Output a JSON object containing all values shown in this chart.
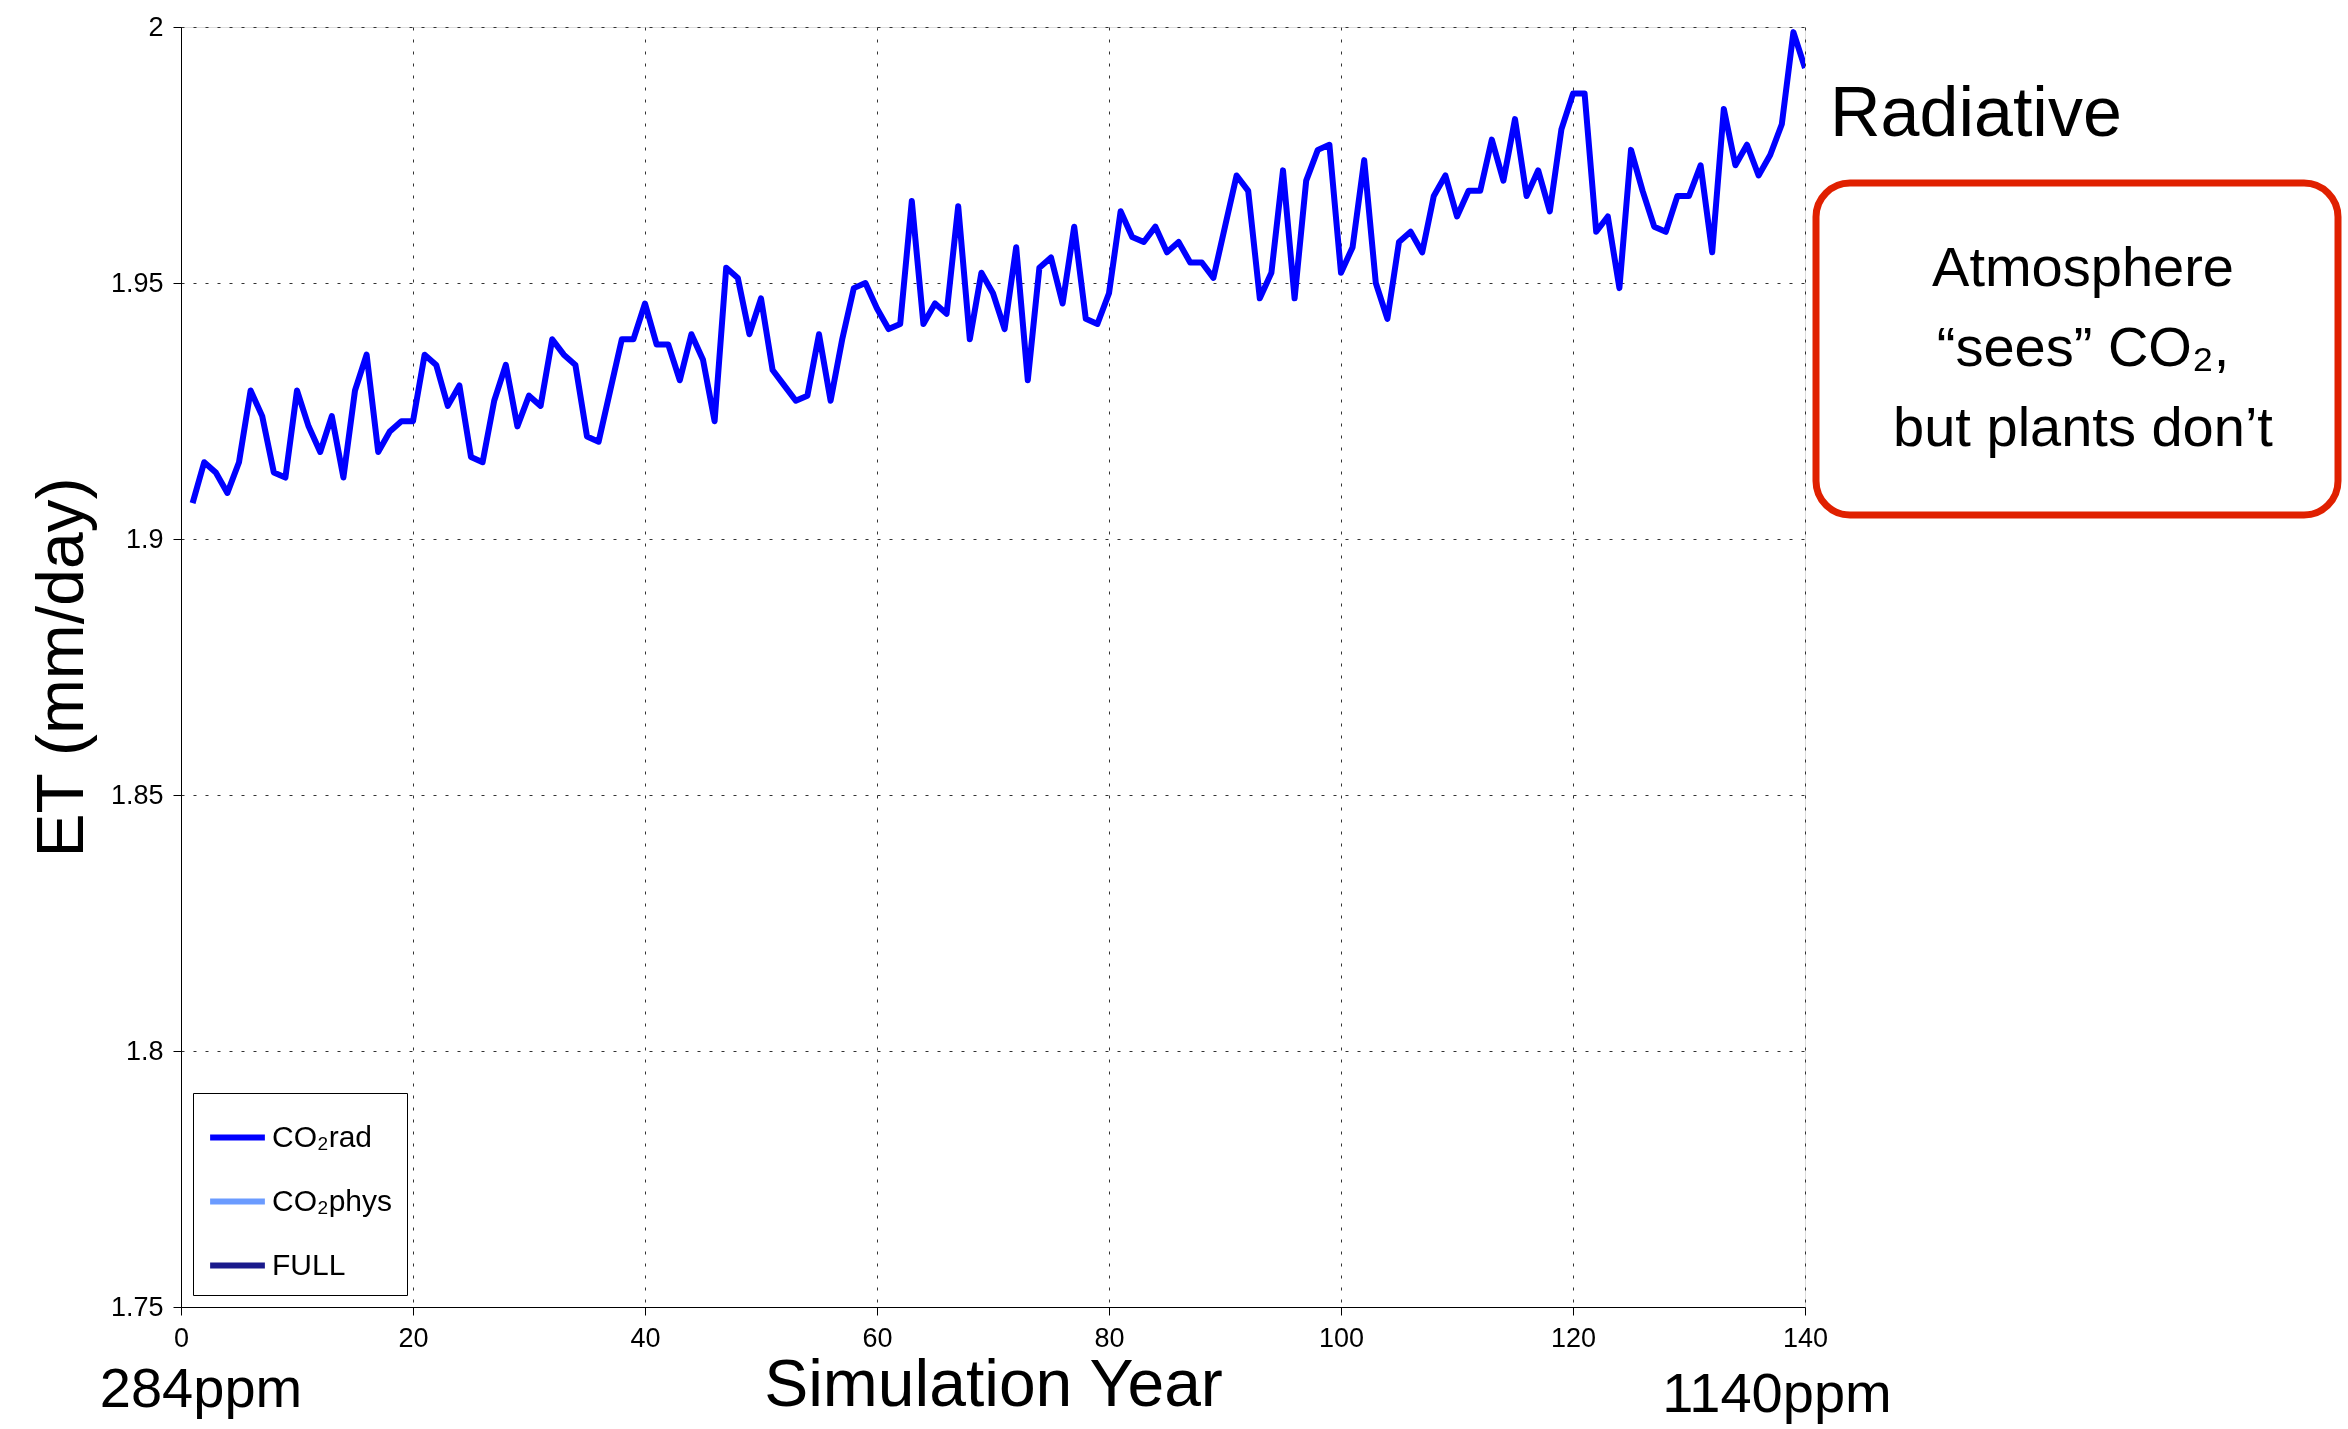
{
  "chart_data": {
    "type": "line",
    "xlabel": "Simulation Year",
    "ylabel": "ET (mm/day)",
    "x": [
      1,
      2,
      3,
      4,
      5,
      6,
      7,
      8,
      9,
      10,
      11,
      12,
      13,
      14,
      15,
      16,
      17,
      18,
      19,
      20,
      21,
      22,
      23,
      24,
      25,
      26,
      27,
      28,
      29,
      30,
      31,
      32,
      33,
      34,
      35,
      36,
      37,
      38,
      39,
      40,
      41,
      42,
      43,
      44,
      45,
      46,
      47,
      48,
      49,
      50,
      51,
      52,
      53,
      54,
      55,
      56,
      57,
      58,
      59,
      60,
      61,
      62,
      63,
      64,
      65,
      66,
      67,
      68,
      69,
      70,
      71,
      72,
      73,
      74,
      75,
      76,
      77,
      78,
      79,
      80,
      81,
      82,
      83,
      84,
      85,
      86,
      87,
      88,
      89,
      90,
      91,
      92,
      93,
      94,
      95,
      96,
      97,
      98,
      99,
      100,
      101,
      102,
      103,
      104,
      105,
      106,
      107,
      108,
      109,
      110,
      111,
      112,
      113,
      114,
      115,
      116,
      117,
      118,
      119,
      120,
      121,
      122,
      123,
      124,
      125,
      126,
      127,
      128,
      129,
      130,
      131,
      132,
      133,
      134,
      135,
      136,
      137,
      138,
      139,
      140
    ],
    "series": [
      {
        "name": "CO₂rad",
        "color": "#0000ff",
        "values": [
          1.907,
          1.915,
          1.913,
          1.909,
          1.915,
          1.929,
          1.924,
          1.913,
          1.912,
          1.929,
          1.922,
          1.917,
          1.924,
          1.912,
          1.929,
          1.936,
          1.917,
          1.921,
          1.923,
          1.923,
          1.936,
          1.934,
          1.926,
          1.93,
          1.916,
          1.915,
          1.927,
          1.934,
          1.922,
          1.928,
          1.926,
          1.939,
          1.936,
          1.934,
          1.92,
          1.919,
          1.929,
          1.939,
          1.939,
          1.946,
          1.938,
          1.938,
          1.931,
          1.94,
          1.935,
          1.923,
          1.953,
          1.951,
          1.94,
          1.947,
          1.933,
          1.93,
          1.927,
          1.928,
          1.94,
          1.927,
          1.939,
          1.949,
          1.95,
          1.945,
          1.941,
          1.942,
          1.966,
          1.942,
          1.946,
          1.944,
          1.965,
          1.939,
          1.952,
          1.948,
          1.941,
          1.957,
          1.931,
          1.953,
          1.955,
          1.946,
          1.961,
          1.943,
          1.942,
          1.948,
          1.964,
          1.959,
          1.958,
          1.961,
          1.956,
          1.958,
          1.954,
          1.954,
          1.951,
          1.961,
          1.971,
          1.968,
          1.947,
          1.952,
          1.972,
          1.947,
          1.97,
          1.976,
          1.977,
          1.952,
          1.957,
          1.974,
          1.95,
          1.943,
          1.958,
          1.96,
          1.956,
          1.967,
          1.971,
          1.963,
          1.968,
          1.968,
          1.978,
          1.97,
          1.982,
          1.967,
          1.972,
          1.964,
          1.98,
          1.987,
          1.987,
          1.96,
          1.963,
          1.949,
          1.976,
          1.968,
          1.961,
          1.96,
          1.967,
          1.967,
          1.973,
          1.956,
          1.984,
          1.973,
          1.977,
          1.971,
          1.975,
          1.981,
          1.999,
          1.992
        ]
      },
      {
        "name": "CO₂phys",
        "color": "#6b9bff",
        "values": [
          null,
          null,
          null,
          null,
          null,
          null,
          null,
          null,
          null,
          null,
          null,
          null,
          null,
          null,
          null,
          null,
          null,
          null,
          null,
          null,
          null,
          null,
          null,
          null,
          null,
          null,
          null,
          null,
          null,
          null,
          null,
          null,
          null,
          null,
          null,
          null,
          null,
          null,
          null,
          null,
          null,
          null,
          null,
          null,
          null,
          null,
          null,
          null,
          null,
          null,
          null,
          null,
          null,
          null,
          null,
          null,
          null,
          null,
          null,
          null,
          null,
          null,
          null,
          null,
          null,
          null,
          null,
          null,
          null,
          null,
          null,
          null,
          null,
          null,
          null,
          null,
          null,
          null,
          null,
          null,
          null,
          null,
          null,
          null,
          null,
          null,
          null,
          null,
          null,
          null,
          null,
          null,
          null,
          null,
          null,
          null,
          null,
          null,
          null,
          null,
          null,
          null,
          null,
          null,
          null,
          null,
          null,
          null,
          null,
          null,
          null,
          null,
          null,
          null,
          null,
          null,
          null,
          null,
          null,
          null,
          null,
          null,
          null,
          null,
          null,
          null,
          null,
          null,
          null,
          null,
          null,
          null,
          null,
          null,
          null,
          null,
          null,
          null,
          null,
          null
        ]
      },
      {
        "name": "FULL",
        "color": "#1a1a8c",
        "values": [
          null,
          null,
          null,
          null,
          null,
          null,
          null,
          null,
          null,
          null,
          null,
          null,
          null,
          null,
          null,
          null,
          null,
          null,
          null,
          null,
          null,
          null,
          null,
          null,
          null,
          null,
          null,
          null,
          null,
          null,
          null,
          null,
          null,
          null,
          null,
          null,
          null,
          null,
          null,
          null,
          null,
          null,
          null,
          null,
          null,
          null,
          null,
          null,
          null,
          null,
          null,
          null,
          null,
          null,
          null,
          null,
          null,
          null,
          null,
          null,
          null,
          null,
          null,
          null,
          null,
          null,
          null,
          null,
          null,
          null,
          null,
          null,
          null,
          null,
          null,
          null,
          null,
          null,
          null,
          null,
          null,
          null,
          null,
          null,
          null,
          null,
          null,
          null,
          null,
          null,
          null,
          null,
          null,
          null,
          null,
          null,
          null,
          null,
          null,
          null,
          null,
          null,
          null,
          null,
          null,
          null,
          null,
          null,
          null,
          null,
          null,
          null,
          null,
          null,
          null,
          null,
          null,
          null,
          null,
          null,
          null,
          null,
          null,
          null,
          null,
          null,
          null,
          null,
          null,
          null,
          null,
          null,
          null,
          null,
          null,
          null,
          null,
          null,
          null,
          null
        ]
      }
    ],
    "xlim": [
      0,
      140
    ],
    "xticks": [
      0,
      20,
      40,
      60,
      80,
      100,
      120,
      140
    ],
    "ylim": [
      1.75,
      2
    ],
    "yticks": [
      1.75,
      1.8,
      1.85,
      1.9,
      1.95,
      2
    ],
    "grid": true,
    "legend": "bottom left",
    "line_style": "solid",
    "annotations": [
      "Radiative",
      "Atmosphere\n“sees” CO₂,\nbut plants don’t",
      "284ppm",
      "1140ppm"
    ]
  }
}
